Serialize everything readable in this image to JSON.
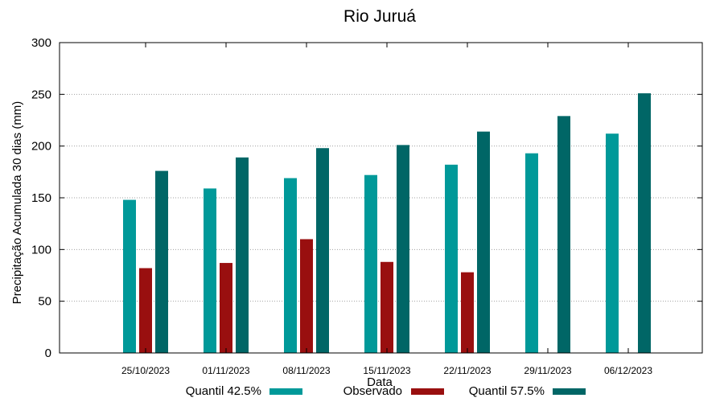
{
  "chart_data": {
    "type": "bar",
    "title": "Rio Juruá",
    "xlabel": "Data",
    "ylabel": "Precipitação Acumulada 30 dias (mm)",
    "ylim": [
      0,
      300
    ],
    "yticks": [
      0,
      50,
      100,
      150,
      200,
      250,
      300
    ],
    "grid": true,
    "legend_position": "bottom",
    "categories": [
      "25/10/2023",
      "01/11/2023",
      "08/11/2023",
      "15/11/2023",
      "22/11/2023",
      "29/11/2023",
      "06/12/2023"
    ],
    "series": [
      {
        "name": "Quantil 42.5%",
        "color": "#009999",
        "values": [
          148,
          159,
          169,
          172,
          182,
          193,
          212
        ]
      },
      {
        "name": "Observado",
        "color": "#990f0f",
        "values": [
          82,
          87,
          110,
          88,
          78,
          null,
          null
        ]
      },
      {
        "name": "Quantil 57.5%",
        "color": "#006666",
        "values": [
          176,
          189,
          198,
          201,
          214,
          229,
          251
        ]
      }
    ]
  }
}
